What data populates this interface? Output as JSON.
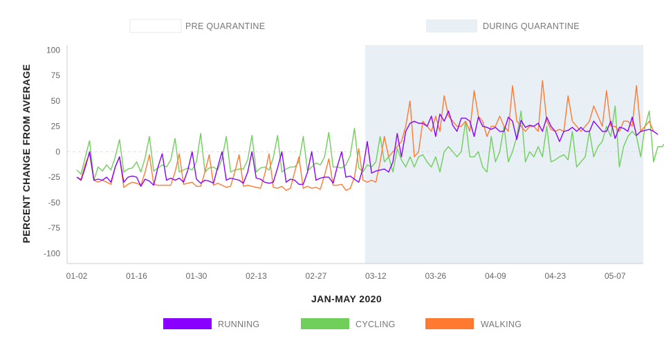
{
  "chart_data": {
    "type": "line",
    "xlabel": "JAN-MAY 2020",
    "ylabel": "PERCENT CHANGE FROM AVERAGE",
    "ylim": [
      -110,
      105
    ],
    "yticks": [
      100,
      75,
      50,
      25,
      0,
      -25,
      -50,
      -75,
      -100
    ],
    "ytick_labels": [
      "100",
      "75",
      "50",
      "25",
      "0",
      "-25",
      "-50",
      "-75",
      "-100"
    ],
    "xlim": [
      0,
      130
    ],
    "xticks": [
      0,
      14,
      28,
      42,
      56,
      70,
      84,
      98,
      112,
      126
    ],
    "xtick_labels": [
      "01-02",
      "01-16",
      "01-30",
      "02-13",
      "02-27",
      "03-12",
      "03-26",
      "04-09",
      "04-23",
      "05-07"
    ],
    "grid": false,
    "zero_line": true,
    "period_legend": [
      {
        "label": "PRE QUARANTINE",
        "color": "#ffffff"
      },
      {
        "label": "DURING QUARANTINE",
        "color": "#e8eff5"
      }
    ],
    "quarantine_start": 67.5,
    "series": [
      {
        "name": "RUNNING",
        "color": "#8a00ff",
        "values": [
          -25,
          -28,
          -15,
          0,
          -28,
          -27,
          -28,
          -25,
          -30,
          -15,
          -5,
          -30,
          -25,
          -24,
          -25,
          -34,
          -27,
          -29,
          -33,
          -15,
          -2,
          -28,
          -26,
          -28,
          -26,
          -30,
          -18,
          0,
          -27,
          -31,
          -28,
          -29,
          -31,
          -15,
          0,
          -28,
          -26,
          -27,
          -28,
          -31,
          -20,
          0,
          -26,
          -27,
          -30,
          -31,
          -30,
          -16,
          0,
          -30,
          -27,
          -28,
          -32,
          -32,
          -20,
          0,
          -28,
          -26,
          -25,
          -25,
          -31,
          -14,
          0,
          -25,
          -24,
          -27,
          -30,
          -16,
          10,
          -21,
          -19,
          -18,
          -17,
          -20,
          -10,
          18,
          -5,
          20,
          28,
          30,
          28,
          28,
          25,
          35,
          15,
          37,
          30,
          40,
          26,
          20,
          33,
          33,
          30,
          15,
          34,
          25,
          24,
          22,
          24,
          20,
          20,
          34,
          30,
          12,
          31,
          24,
          26,
          25,
          28,
          20,
          34,
          25,
          20,
          10,
          20,
          21,
          24,
          20,
          24,
          20,
          20,
          30,
          25,
          20,
          20,
          30,
          13,
          24,
          23,
          20,
          34,
          16,
          20,
          21,
          22,
          20,
          17
        ],
        "unit": "%"
      },
      {
        "name": "CYCLING",
        "color": "#6fcf5a",
        "values": [
          -18,
          -22,
          -5,
          11,
          -28,
          -15,
          -19,
          -13,
          -18,
          -5,
          12,
          -20,
          -17,
          -16,
          -10,
          -20,
          -6,
          15,
          -19,
          -16,
          -13,
          -15,
          -8,
          13,
          -20,
          -18,
          -16,
          -18,
          -10,
          18,
          -20,
          -16,
          -15,
          -18,
          -7,
          15,
          -20,
          -18,
          -17,
          -17,
          -8,
          16,
          -20,
          -16,
          -15,
          -18,
          -6,
          16,
          -20,
          -17,
          -15,
          -15,
          -10,
          15,
          -19,
          -15,
          -11,
          -13,
          -5,
          19,
          -15,
          -15,
          -16,
          -13,
          -4,
          23,
          -16,
          -20,
          -13,
          -15,
          -10,
          15,
          -10,
          -5,
          -20,
          3,
          -8,
          -15,
          -5,
          -15,
          -5,
          -3,
          -10,
          -15,
          -5,
          -20,
          0,
          5,
          0,
          -5,
          0,
          30,
          -5,
          -5,
          0,
          -15,
          -20,
          15,
          -10,
          0,
          25,
          -10,
          0,
          15,
          40,
          -10,
          0,
          -5,
          5,
          -5,
          25,
          -10,
          -8,
          -5,
          -3,
          -8,
          20,
          -15,
          -10,
          -5,
          20,
          -5,
          5,
          10,
          25,
          15,
          45,
          -15,
          5,
          15,
          20,
          15,
          -5,
          25,
          40,
          -10,
          5,
          5,
          10,
          8
        ],
        "unit": "%"
      },
      {
        "name": "WALKING",
        "color": "#ff7a30",
        "values": [
          -25,
          -27,
          -12,
          -2,
          -28,
          -30,
          -28,
          -30,
          -32,
          -15,
          -5,
          -35,
          -32,
          -30,
          -31,
          -33,
          -20,
          -3,
          -32,
          -33,
          -33,
          -33,
          -33,
          -20,
          -2,
          -32,
          -31,
          -30,
          -34,
          -34,
          -20,
          -3,
          -33,
          -31,
          -33,
          -35,
          -34,
          -20,
          -3,
          -34,
          -33,
          -34,
          -35,
          -36,
          -22,
          -2,
          -35,
          -36,
          -34,
          -38,
          -36,
          -20,
          -5,
          -36,
          -34,
          -36,
          -35,
          -37,
          -23,
          -7,
          -33,
          -33,
          -32,
          -38,
          -36,
          -25,
          3,
          -28,
          -30,
          -28,
          -30,
          -10,
          15,
          -5,
          0,
          5,
          10,
          25,
          50,
          -5,
          0,
          30,
          25,
          20,
          35,
          20,
          55,
          35,
          30,
          25,
          25,
          30,
          20,
          60,
          35,
          30,
          15,
          25,
          25,
          35,
          25,
          20,
          65,
          30,
          25,
          20,
          25,
          25,
          20,
          70,
          30,
          22,
          20,
          22,
          20,
          55,
          30,
          25,
          20,
          25,
          30,
          45,
          35,
          25,
          60,
          25,
          25,
          20,
          30,
          30,
          25,
          65,
          20,
          25,
          30,
          20
        ]
      }
    ]
  }
}
